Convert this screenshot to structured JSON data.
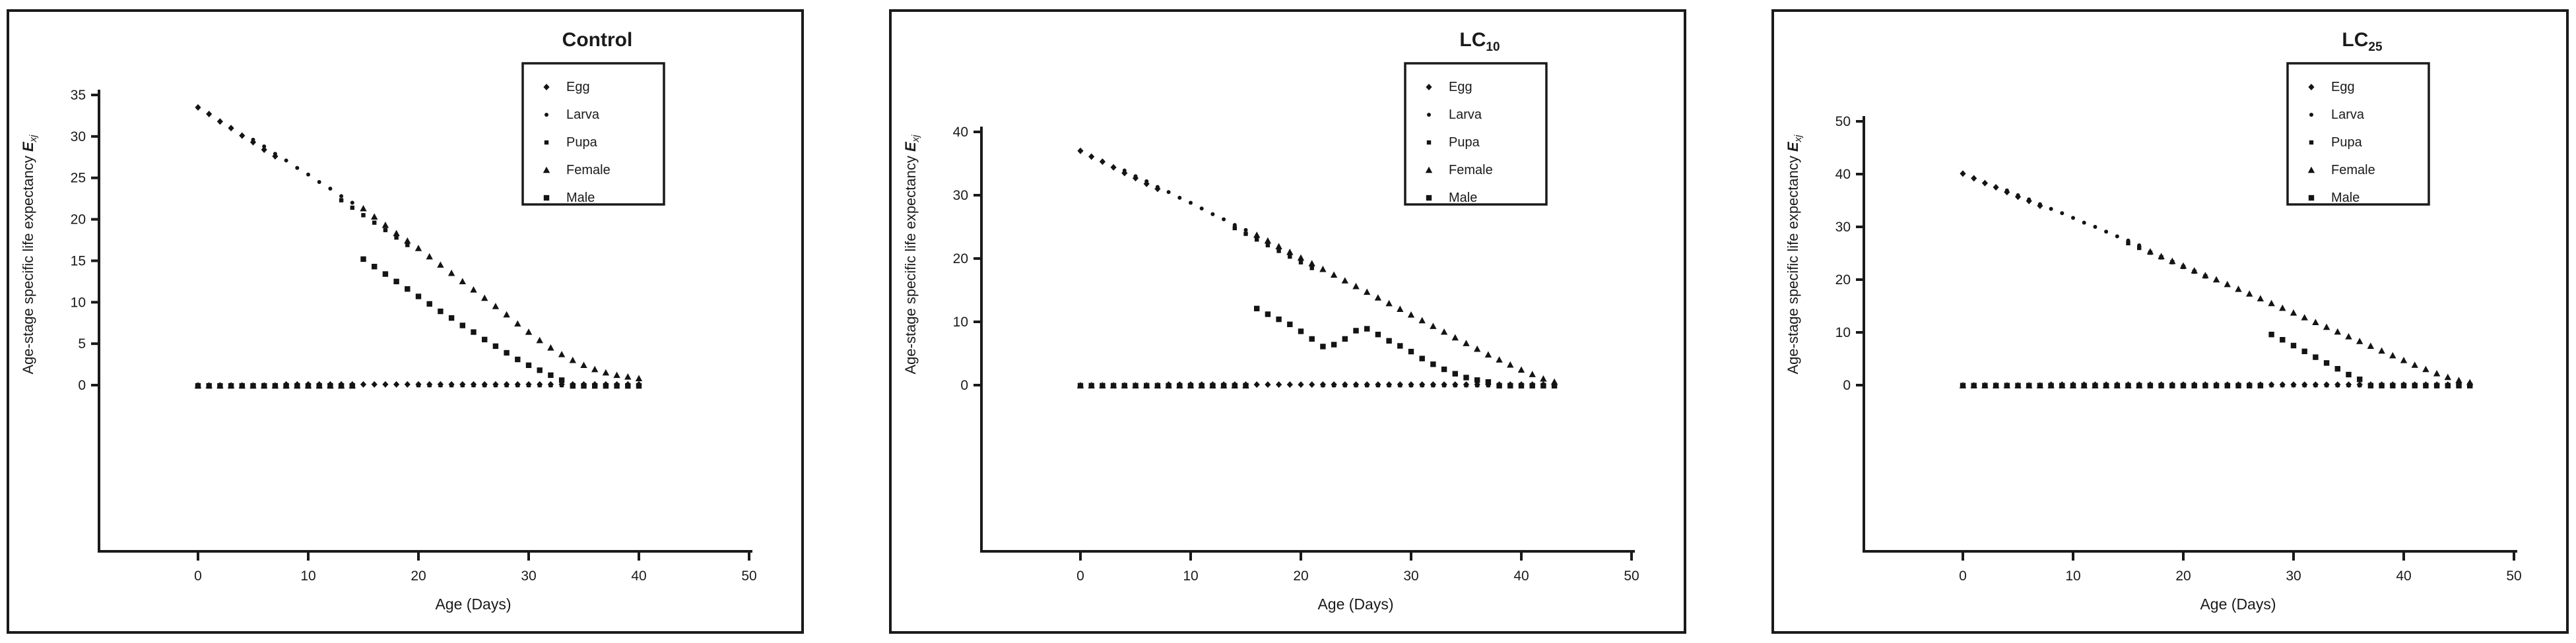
{
  "figure": {
    "ylabel_text": "Age-stage specific life expectancy ",
    "ylabel_sym": "E",
    "ylabel_sub": "xj",
    "xlabel": "Age (Days)",
    "marker_color": "#141414",
    "axis_color": "#1a1a1a",
    "background": "#ffffff",
    "legend_labels": [
      "Egg",
      "Larva",
      "Pupa",
      "Female",
      "Male"
    ]
  },
  "chart_data": [
    {
      "type": "scatter",
      "title": "Control",
      "title_sub": "",
      "xlabel": "Age (Days)",
      "ylabel": "Age-stage specific life expectancy Exj",
      "xlim": [
        0,
        50
      ],
      "ylim": [
        0,
        35
      ],
      "xticks": [
        0,
        10,
        20,
        30,
        40,
        50
      ],
      "yticks": [
        0,
        5,
        10,
        15,
        20,
        25,
        30,
        35
      ],
      "grid": false,
      "legend_position": "top-right",
      "series": [
        {
          "name": "Egg",
          "marker": "diamond",
          "points": [
            [
              0,
              33.5
            ],
            [
              1,
              32.7
            ],
            [
              2,
              31.8
            ],
            [
              3,
              31.0
            ],
            [
              4,
              30.1
            ],
            [
              5,
              29.3
            ],
            [
              6,
              28.4
            ],
            [
              7,
              27.6
            ]
          ],
          "zeros": [
            [
              8,
              40
            ]
          ]
        },
        {
          "name": "Larva",
          "marker": "dot",
          "points": [
            [
              5,
              29.6
            ],
            [
              6,
              28.8
            ],
            [
              7,
              27.9
            ],
            [
              8,
              27.1
            ],
            [
              9,
              26.2
            ],
            [
              10,
              25.4
            ],
            [
              11,
              24.5
            ],
            [
              12,
              23.7
            ],
            [
              13,
              22.8
            ],
            [
              14,
              22.0
            ]
          ],
          "zeros": [
            [
              0,
              4
            ],
            [
              15,
              40
            ]
          ]
        },
        {
          "name": "Pupa",
          "marker": "square",
          "points": [
            [
              13,
              22.3
            ],
            [
              14,
              21.4
            ],
            [
              15,
              20.5
            ],
            [
              16,
              19.6
            ],
            [
              17,
              18.7
            ],
            [
              18,
              17.8
            ],
            [
              19,
              16.9
            ]
          ],
          "zeros": [
            [
              0,
              12
            ],
            [
              20,
              40
            ]
          ]
        },
        {
          "name": "Female",
          "marker": "triangle",
          "points": [
            [
              15,
              21.3
            ],
            [
              16,
              20.3
            ],
            [
              17,
              19.3
            ],
            [
              18,
              18.3
            ],
            [
              19,
              17.4
            ],
            [
              20,
              16.5
            ],
            [
              21,
              15.5
            ],
            [
              22,
              14.5
            ],
            [
              23,
              13.5
            ],
            [
              24,
              12.5
            ],
            [
              25,
              11.5
            ],
            [
              26,
              10.5
            ],
            [
              27,
              9.5
            ],
            [
              28,
              8.5
            ],
            [
              29,
              7.4
            ],
            [
              30,
              6.4
            ],
            [
              31,
              5.4
            ],
            [
              32,
              4.5
            ],
            [
              33,
              3.7
            ],
            [
              34,
              3.0
            ],
            [
              35,
              2.4
            ],
            [
              36,
              1.9
            ],
            [
              37,
              1.5
            ],
            [
              38,
              1.2
            ],
            [
              39,
              1.0
            ],
            [
              40,
              0.8
            ]
          ],
          "zeros": [
            [
              0,
              14
            ]
          ]
        },
        {
          "name": "Male",
          "marker": "bigsquare",
          "points": [
            [
              15,
              15.2
            ],
            [
              16,
              14.3
            ],
            [
              17,
              13.4
            ],
            [
              18,
              12.5
            ],
            [
              19,
              11.6
            ],
            [
              20,
              10.7
            ],
            [
              21,
              9.8
            ],
            [
              22,
              8.9
            ],
            [
              23,
              8.1
            ],
            [
              24,
              7.2
            ],
            [
              25,
              6.4
            ],
            [
              26,
              5.5
            ],
            [
              27,
              4.7
            ],
            [
              28,
              3.9
            ],
            [
              29,
              3.1
            ],
            [
              30,
              2.4
            ],
            [
              31,
              1.8
            ],
            [
              32,
              1.2
            ],
            [
              33,
              0.6
            ]
          ],
          "zeros": [
            [
              0,
              14
            ],
            [
              34,
              40
            ]
          ]
        }
      ]
    },
    {
      "type": "scatter",
      "title": "LC",
      "title_sub": "10",
      "xlabel": "Age (Days)",
      "ylabel": "Age-stage specific life expectancy Exj",
      "xlim": [
        0,
        50
      ],
      "ylim": [
        0,
        40
      ],
      "xticks": [
        0,
        10,
        20,
        30,
        40,
        50
      ],
      "yticks": [
        0,
        10,
        20,
        30,
        40
      ],
      "grid": false,
      "legend_position": "top-right",
      "series": [
        {
          "name": "Egg",
          "marker": "diamond",
          "points": [
            [
              0,
              37.0
            ],
            [
              1,
              36.1
            ],
            [
              2,
              35.3
            ],
            [
              3,
              34.4
            ],
            [
              4,
              33.5
            ],
            [
              5,
              32.7
            ],
            [
              6,
              31.8
            ],
            [
              7,
              31.0
            ]
          ],
          "zeros": [
            [
              8,
              43
            ]
          ]
        },
        {
          "name": "Larva",
          "marker": "dot",
          "points": [
            [
              4,
              33.9
            ],
            [
              5,
              33.0
            ],
            [
              6,
              32.2
            ],
            [
              7,
              31.3
            ],
            [
              8,
              30.5
            ],
            [
              9,
              29.6
            ],
            [
              10,
              28.8
            ],
            [
              11,
              27.9
            ],
            [
              12,
              27.0
            ],
            [
              13,
              26.2
            ],
            [
              14,
              25.3
            ],
            [
              15,
              24.5
            ]
          ],
          "zeros": [
            [
              0,
              3
            ],
            [
              16,
              43
            ]
          ]
        },
        {
          "name": "Pupa",
          "marker": "square",
          "points": [
            [
              14,
              24.8
            ],
            [
              15,
              23.9
            ],
            [
              16,
              23.0
            ],
            [
              17,
              22.1
            ],
            [
              18,
              21.2
            ],
            [
              19,
              20.3
            ],
            [
              20,
              19.4
            ],
            [
              21,
              18.5
            ]
          ],
          "zeros": [
            [
              0,
              13
            ],
            [
              22,
              43
            ]
          ]
        },
        {
          "name": "Female",
          "marker": "triangle",
          "points": [
            [
              16,
              23.7
            ],
            [
              17,
              22.8
            ],
            [
              18,
              21.9
            ],
            [
              19,
              21.0
            ],
            [
              20,
              20.1
            ],
            [
              21,
              19.2
            ],
            [
              22,
              18.3
            ],
            [
              23,
              17.4
            ],
            [
              24,
              16.5
            ],
            [
              25,
              15.6
            ],
            [
              26,
              14.7
            ],
            [
              27,
              13.8
            ],
            [
              28,
              12.9
            ],
            [
              29,
              12.0
            ],
            [
              30,
              11.1
            ],
            [
              31,
              10.2
            ],
            [
              32,
              9.3
            ],
            [
              33,
              8.4
            ],
            [
              34,
              7.5
            ],
            [
              35,
              6.6
            ],
            [
              36,
              5.7
            ],
            [
              37,
              4.8
            ],
            [
              38,
              4.0
            ],
            [
              39,
              3.2
            ],
            [
              40,
              2.4
            ],
            [
              41,
              1.7
            ],
            [
              42,
              1.0
            ],
            [
              43,
              0.5
            ]
          ],
          "zeros": [
            [
              0,
              15
            ]
          ]
        },
        {
          "name": "Male",
          "marker": "bigsquare",
          "points": [
            [
              16,
              12.1
            ],
            [
              17,
              11.2
            ],
            [
              18,
              10.4
            ],
            [
              19,
              9.6
            ],
            [
              20,
              8.5
            ],
            [
              21,
              7.3
            ],
            [
              22,
              6.1
            ],
            [
              23,
              6.4
            ],
            [
              24,
              7.3
            ],
            [
              25,
              8.6
            ],
            [
              26,
              8.9
            ],
            [
              27,
              8.0
            ],
            [
              28,
              7.0
            ],
            [
              29,
              6.2
            ],
            [
              30,
              5.3
            ],
            [
              31,
              4.2
            ],
            [
              32,
              3.3
            ],
            [
              33,
              2.5
            ],
            [
              34,
              1.8
            ],
            [
              35,
              1.2
            ],
            [
              36,
              0.8
            ],
            [
              37,
              0.5
            ]
          ],
          "zeros": [
            [
              0,
              15
            ],
            [
              38,
              43
            ]
          ]
        }
      ]
    },
    {
      "type": "scatter",
      "title": "LC",
      "title_sub": "25",
      "xlabel": "Age (Days)",
      "ylabel": "Age-stage specific life expectancy Exj",
      "xlim": [
        0,
        50
      ],
      "ylim": [
        0,
        50
      ],
      "xticks": [
        0,
        10,
        20,
        30,
        40,
        50
      ],
      "yticks": [
        0,
        10,
        20,
        30,
        40,
        50
      ],
      "grid": false,
      "legend_position": "top-right",
      "series": [
        {
          "name": "Egg",
          "marker": "diamond",
          "points": [
            [
              0,
              40.1
            ],
            [
              1,
              39.2
            ],
            [
              2,
              38.3
            ],
            [
              3,
              37.5
            ],
            [
              4,
              36.6
            ],
            [
              5,
              35.7
            ],
            [
              6,
              34.9
            ],
            [
              7,
              34.0
            ]
          ],
          "zeros": [
            [
              8,
              46
            ]
          ]
        },
        {
          "name": "Larva",
          "marker": "dot",
          "points": [
            [
              4,
              36.9
            ],
            [
              5,
              36.0
            ],
            [
              6,
              35.2
            ],
            [
              7,
              34.3
            ],
            [
              8,
              33.4
            ],
            [
              9,
              32.6
            ],
            [
              10,
              31.7
            ],
            [
              11,
              30.8
            ],
            [
              12,
              30.0
            ],
            [
              13,
              29.1
            ],
            [
              14,
              28.2
            ],
            [
              15,
              27.4
            ],
            [
              16,
              26.5
            ]
          ],
          "zeros": [
            [
              0,
              3
            ],
            [
              17,
              46
            ]
          ]
        },
        {
          "name": "Pupa",
          "marker": "square",
          "points": [
            [
              15,
              26.9
            ],
            [
              16,
              26.0
            ],
            [
              17,
              25.1
            ],
            [
              18,
              24.2
            ],
            [
              19,
              23.3
            ],
            [
              20,
              22.4
            ],
            [
              21,
              21.5
            ],
            [
              22,
              20.6
            ]
          ],
          "zeros": [
            [
              0,
              14
            ],
            [
              23,
              46
            ]
          ]
        },
        {
          "name": "Female",
          "marker": "triangle",
          "points": [
            [
              17,
              25.3
            ],
            [
              18,
              24.4
            ],
            [
              19,
              23.5
            ],
            [
              20,
              22.6
            ],
            [
              21,
              21.7
            ],
            [
              22,
              20.8
            ],
            [
              23,
              20.0
            ],
            [
              24,
              19.1
            ],
            [
              25,
              18.2
            ],
            [
              26,
              17.3
            ],
            [
              27,
              16.4
            ],
            [
              28,
              15.5
            ],
            [
              29,
              14.6
            ],
            [
              30,
              13.7
            ],
            [
              31,
              12.8
            ],
            [
              32,
              11.9
            ],
            [
              33,
              11.0
            ],
            [
              34,
              10.1
            ],
            [
              35,
              9.2
            ],
            [
              36,
              8.3
            ],
            [
              37,
              7.4
            ],
            [
              38,
              6.5
            ],
            [
              39,
              5.6
            ],
            [
              40,
              4.7
            ],
            [
              41,
              3.8
            ],
            [
              42,
              3.0
            ],
            [
              43,
              2.2
            ],
            [
              44,
              1.5
            ],
            [
              45,
              0.9
            ],
            [
              46,
              0.5
            ]
          ],
          "zeros": [
            [
              0,
              16
            ]
          ]
        },
        {
          "name": "Male",
          "marker": "bigsquare",
          "points": [
            [
              28,
              9.6
            ],
            [
              29,
              8.6
            ],
            [
              30,
              7.5
            ],
            [
              31,
              6.4
            ],
            [
              32,
              5.3
            ],
            [
              33,
              4.2
            ],
            [
              34,
              3.1
            ],
            [
              35,
              2.0
            ],
            [
              36,
              1.1
            ]
          ],
          "zeros": [
            [
              0,
              27
            ],
            [
              37,
              46
            ]
          ]
        }
      ]
    }
  ]
}
